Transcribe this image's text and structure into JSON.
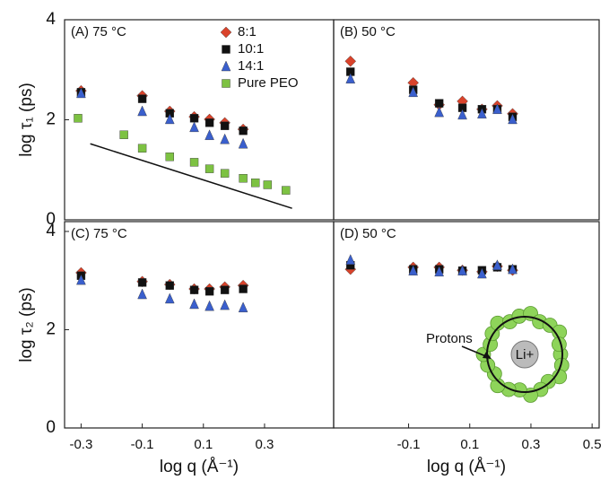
{
  "chart_data": [
    {
      "type": "scatter",
      "panel_label": "(A) 75 °C",
      "ylabel": "log τ₁ (ps)",
      "xlim": [
        -0.354,
        0.526
      ],
      "ylim": [
        0,
        4
      ],
      "yticks": [
        0,
        2,
        4
      ],
      "legend": "upper right",
      "x": [
        -0.3,
        -0.1,
        -0.01,
        0.07,
        0.12,
        0.17,
        0.23
      ],
      "series": [
        {
          "name": "8:1",
          "color": "#d9432b",
          "marker": "diamond",
          "values": [
            2.58,
            2.48,
            2.17,
            2.06,
            2.01,
            1.94,
            1.81
          ]
        },
        {
          "name": "10:1",
          "color": "#111111",
          "marker": "square",
          "values": [
            2.55,
            2.42,
            2.13,
            2.03,
            1.94,
            1.88,
            1.78
          ]
        },
        {
          "name": "14:1",
          "color": "#3a5fcd",
          "marker": "triangle",
          "values": [
            2.53,
            2.17,
            2.01,
            1.85,
            1.69,
            1.61,
            1.52
          ]
        },
        {
          "name": "Pure PEO",
          "color": "#7dc242",
          "marker": "square",
          "x": [
            -0.31,
            -0.16,
            -0.1,
            -0.01,
            0.07,
            0.12,
            0.17,
            0.23,
            0.27,
            0.31,
            0.37
          ],
          "values": [
            2.03,
            1.7,
            1.43,
            1.26,
            1.15,
            1.02,
            0.93,
            0.83,
            0.74,
            0.7,
            0.59
          ]
        }
      ],
      "reference_line": {
        "x": [
          -0.27,
          0.39
        ],
        "y": [
          1.52,
          0.23
        ]
      }
    },
    {
      "type": "scatter",
      "panel_label": "(B) 50 °C",
      "xlim": [
        -0.345,
        0.523
      ],
      "ylim": [
        0,
        4
      ],
      "x": [
        -0.29,
        -0.085,
        0.0,
        0.076,
        0.14,
        0.19,
        0.24
      ],
      "series": [
        {
          "color": "#d9432b",
          "marker": "diamond",
          "values": [
            3.17,
            2.74,
            2.3,
            2.37,
            2.21,
            2.28,
            2.12
          ]
        },
        {
          "color": "#111111",
          "marker": "square",
          "values": [
            2.96,
            2.6,
            2.33,
            2.24,
            2.21,
            2.21,
            2.06
          ]
        },
        {
          "color": "#3a5fcd",
          "marker": "triangle",
          "values": [
            2.82,
            2.55,
            2.15,
            2.1,
            2.12,
            2.21,
            2.01
          ]
        }
      ]
    },
    {
      "type": "scatter",
      "panel_label": "(C) 75 °C",
      "ylabel": "log τ₂ (ps)",
      "xlabel": "log q (Å⁻¹)",
      "xlim": [
        -0.354,
        0.526
      ],
      "ylim": [
        0,
        4.2
      ],
      "yticks": [
        0,
        2,
        4
      ],
      "xticks": [
        -0.3,
        -0.1,
        0.1,
        0.3
      ],
      "x": [
        -0.3,
        -0.1,
        -0.01,
        0.07,
        0.12,
        0.17,
        0.23
      ],
      "series": [
        {
          "color": "#d9432b",
          "marker": "diamond",
          "values": [
            3.16,
            2.98,
            2.92,
            2.83,
            2.83,
            2.87,
            2.9
          ]
        },
        {
          "color": "#111111",
          "marker": "square",
          "values": [
            3.1,
            2.96,
            2.9,
            2.81,
            2.78,
            2.81,
            2.83
          ]
        },
        {
          "color": "#3a5fcd",
          "marker": "triangle",
          "values": [
            3.01,
            2.72,
            2.63,
            2.52,
            2.48,
            2.5,
            2.45
          ]
        }
      ]
    },
    {
      "type": "scatter",
      "panel_label": "(D) 50 °C",
      "xlabel": "log q (Å⁻¹)",
      "xlim": [
        -0.345,
        0.523
      ],
      "ylim": [
        0,
        4.2
      ],
      "xticks": [
        -0.1,
        0.1,
        0.3,
        0.5
      ],
      "x": [
        -0.29,
        -0.085,
        0.0,
        0.076,
        0.14,
        0.19,
        0.24
      ],
      "series": [
        {
          "color": "#d9432b",
          "marker": "diamond",
          "values": [
            3.23,
            3.27,
            3.27,
            3.21,
            3.18,
            3.29,
            3.21
          ]
        },
        {
          "color": "#111111",
          "marker": "square",
          "values": [
            3.31,
            3.23,
            3.23,
            3.2,
            3.21,
            3.27,
            3.23
          ]
        },
        {
          "color": "#3a5fcd",
          "marker": "triangle",
          "values": [
            3.42,
            3.2,
            3.18,
            3.2,
            3.14,
            3.31,
            3.23
          ]
        }
      ],
      "annotations": [
        "Protons",
        "Li+"
      ]
    }
  ]
}
